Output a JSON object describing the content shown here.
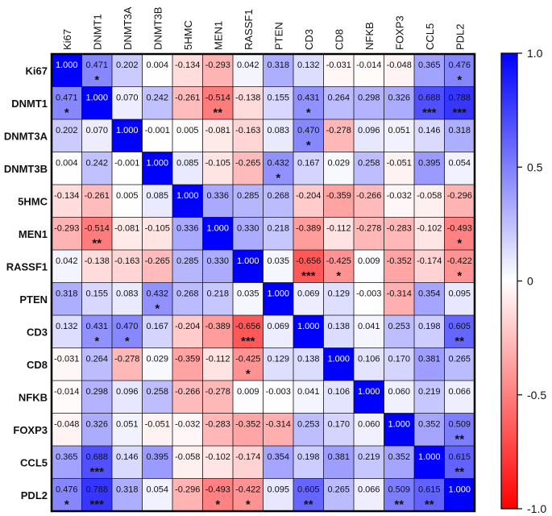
{
  "chart_data": {
    "type": "heatmap",
    "title": "",
    "labels": [
      "Ki67",
      "DNMT1",
      "DNMT3A",
      "DNMT3B",
      "5HMC",
      "MEN1",
      "RASSF1",
      "PTEN",
      "CD3",
      "CD8",
      "NFKB",
      "FOXP3",
      "CCL5",
      "PDL2"
    ],
    "values": [
      [
        1.0,
        0.471,
        0.202,
        0.004,
        -0.134,
        -0.293,
        0.042,
        0.318,
        0.132,
        -0.031,
        -0.014,
        -0.048,
        0.365,
        0.476
      ],
      [
        0.471,
        1.0,
        0.07,
        0.242,
        -0.261,
        -0.514,
        -0.138,
        0.155,
        0.431,
        0.264,
        0.298,
        0.326,
        0.688,
        0.788
      ],
      [
        0.202,
        0.07,
        1.0,
        -0.001,
        0.005,
        -0.081,
        -0.163,
        0.083,
        0.47,
        -0.278,
        0.096,
        0.051,
        0.146,
        0.318
      ],
      [
        0.004,
        0.242,
        -0.001,
        1.0,
        0.085,
        -0.105,
        -0.265,
        0.432,
        0.167,
        0.029,
        0.258,
        -0.051,
        0.395,
        0.054
      ],
      [
        -0.134,
        -0.261,
        0.005,
        0.085,
        1.0,
        0.336,
        0.285,
        0.268,
        -0.204,
        -0.359,
        -0.266,
        -0.032,
        -0.058,
        -0.296
      ],
      [
        -0.293,
        -0.514,
        -0.081,
        -0.105,
        0.336,
        1.0,
        0.33,
        0.218,
        -0.389,
        -0.112,
        -0.278,
        -0.283,
        -0.102,
        -0.493
      ],
      [
        0.042,
        -0.138,
        -0.163,
        -0.265,
        0.285,
        0.33,
        1.0,
        0.035,
        -0.656,
        -0.425,
        0.009,
        -0.352,
        -0.174,
        -0.422
      ],
      [
        0.318,
        0.155,
        0.083,
        0.432,
        0.268,
        0.218,
        0.035,
        1.0,
        0.069,
        0.129,
        -0.003,
        -0.314,
        0.354,
        0.095
      ],
      [
        0.132,
        0.431,
        0.47,
        0.167,
        -0.204,
        -0.389,
        -0.656,
        0.069,
        1.0,
        0.138,
        0.041,
        0.253,
        0.198,
        0.605
      ],
      [
        -0.031,
        0.264,
        -0.278,
        0.029,
        -0.359,
        -0.112,
        -0.425,
        0.129,
        0.138,
        1.0,
        0.106,
        0.17,
        0.381,
        0.265
      ],
      [
        -0.014,
        0.298,
        0.096,
        0.258,
        -0.266,
        -0.278,
        0.009,
        -0.003,
        0.041,
        0.106,
        1.0,
        0.06,
        0.219,
        0.066
      ],
      [
        -0.048,
        0.326,
        0.051,
        -0.051,
        -0.032,
        -0.283,
        -0.352,
        -0.314,
        0.253,
        0.17,
        0.06,
        1.0,
        0.352,
        0.509
      ],
      [
        0.365,
        0.688,
        0.146,
        0.395,
        -0.058,
        -0.102,
        -0.174,
        0.354,
        0.198,
        0.381,
        0.219,
        0.352,
        1.0,
        0.615
      ],
      [
        0.476,
        0.788,
        0.318,
        0.054,
        -0.296,
        -0.493,
        -0.422,
        0.095,
        0.605,
        0.265,
        0.066,
        0.509,
        0.615,
        1.0
      ]
    ],
    "significance": [
      [
        "",
        "*",
        "",
        "",
        "",
        "",
        "",
        "",
        "",
        "",
        "",
        "",
        "",
        "*"
      ],
      [
        "*",
        "",
        "",
        "",
        "",
        "**",
        "",
        "",
        "*",
        "",
        "",
        "",
        "***",
        "***"
      ],
      [
        "",
        "",
        "",
        "",
        "",
        "",
        "",
        "",
        "*",
        "",
        "",
        "",
        "",
        ""
      ],
      [
        "",
        "",
        "",
        "",
        "",
        "",
        "",
        "*",
        "",
        "",
        "",
        "",
        "",
        ""
      ],
      [
        "",
        "",
        "",
        "",
        "",
        "",
        "",
        "",
        "",
        "",
        "",
        "",
        "",
        ""
      ],
      [
        "",
        "**",
        "",
        "",
        "",
        "",
        "",
        "",
        "",
        "",
        "",
        "",
        "",
        "*"
      ],
      [
        "",
        "",
        "",
        "",
        "",
        "",
        "",
        "",
        "***",
        "*",
        "",
        "",
        "",
        "*"
      ],
      [
        "",
        "",
        "",
        "*",
        "",
        "",
        "",
        "",
        "",
        "",
        "",
        "",
        "",
        ""
      ],
      [
        "",
        "*",
        "*",
        "",
        "",
        "",
        "***",
        "",
        "",
        "",
        "",
        "",
        "",
        "**"
      ],
      [
        "",
        "",
        "",
        "",
        "",
        "",
        "*",
        "",
        "",
        "",
        "",
        "",
        "",
        ""
      ],
      [
        "",
        "",
        "",
        "",
        "",
        "",
        "",
        "",
        "",
        "",
        "",
        "",
        "",
        ""
      ],
      [
        "",
        "",
        "",
        "",
        "",
        "",
        "",
        "",
        "",
        "",
        "",
        "",
        "",
        "**"
      ],
      [
        "",
        "***",
        "",
        "",
        "",
        "",
        "",
        "",
        "",
        "",
        "",
        "",
        "",
        "**"
      ],
      [
        "*",
        "***",
        "",
        "",
        "",
        "*",
        "*",
        "",
        "**",
        "",
        "",
        "**",
        "**",
        ""
      ]
    ],
    "value_range": [
      -1.0,
      1.0
    ],
    "colorbar": {
      "ticks": [
        1.0,
        0.5,
        0,
        -0.5,
        -1.0
      ],
      "tick_labels": [
        "1.0",
        "0.5",
        "0",
        "-0.5",
        "-1.0"
      ]
    },
    "colors": {
      "positive": "#0000ff",
      "neutral": "#ffffff",
      "negative": "#ff0000"
    },
    "legend_position": "right"
  }
}
